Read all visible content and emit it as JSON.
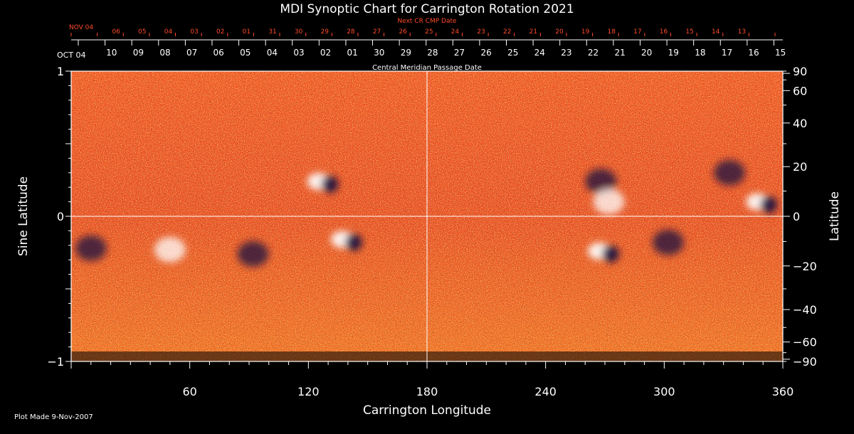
{
  "chart_data": {
    "type": "heatmap",
    "title": "MDI Synoptic Chart for Carrington Rotation 2021",
    "xlabel": "Carrington Longitude",
    "ylabel": "Sine Latitude",
    "y2label": "Latitude",
    "xlim": [
      0,
      360
    ],
    "ylim": [
      -1,
      1
    ],
    "x_ticks": [
      60,
      120,
      180,
      240,
      300,
      360
    ],
    "y_ticks": [
      {
        "value": -1,
        "label": "−1"
      },
      {
        "value": 0,
        "label": "0"
      },
      {
        "value": 1,
        "label": "1"
      }
    ],
    "lat_ticks": [
      {
        "deg": 90,
        "label": "90"
      },
      {
        "deg": 60,
        "label": "60"
      },
      {
        "deg": 40,
        "label": "40"
      },
      {
        "deg": 20,
        "label": "20"
      },
      {
        "deg": 0,
        "label": "0"
      },
      {
        "deg": -20,
        "label": "−20"
      },
      {
        "deg": -40,
        "label": "−40"
      },
      {
        "deg": -60,
        "label": "−60"
      },
      {
        "deg": -90,
        "label": "−90"
      }
    ],
    "top_axis_label": "Central Meridian Passage Date",
    "cmp_start": "OCT 04",
    "cmp_dates": [
      "10",
      "09",
      "08",
      "07",
      "06",
      "05",
      "04",
      "03",
      "02",
      "01",
      "30",
      "29",
      "28",
      "27",
      "26",
      "25",
      "24",
      "23",
      "22",
      "21",
      "20",
      "19",
      "18",
      "17",
      "16",
      "15"
    ],
    "next_cr_label": "Next CR CMP Date",
    "next_cr_start": "NOV 04",
    "next_cr_dates": [
      "06",
      "05",
      "04",
      "03",
      "02",
      "01",
      "31",
      "30",
      "29",
      "28",
      "27",
      "26",
      "25",
      "24",
      "23",
      "22",
      "21",
      "20",
      "19",
      "18",
      "17",
      "16",
      "15",
      "14",
      "13"
    ],
    "active_regions": [
      {
        "lon": 128,
        "sinlat": 0.24,
        "polarity": "mixed"
      },
      {
        "lon": 140,
        "sinlat": -0.16,
        "polarity": "mixed"
      },
      {
        "lon": 92,
        "sinlat": -0.26,
        "polarity": "negative"
      },
      {
        "lon": 10,
        "sinlat": -0.22,
        "polarity": "negative"
      },
      {
        "lon": 50,
        "sinlat": -0.23,
        "polarity": "positive"
      },
      {
        "lon": 268,
        "sinlat": 0.24,
        "polarity": "negative"
      },
      {
        "lon": 272,
        "sinlat": 0.1,
        "polarity": "positive"
      },
      {
        "lon": 270,
        "sinlat": -0.24,
        "polarity": "mixed"
      },
      {
        "lon": 302,
        "sinlat": -0.18,
        "polarity": "negative"
      },
      {
        "lon": 333,
        "sinlat": 0.3,
        "polarity": "negative"
      },
      {
        "lon": 350,
        "sinlat": 0.1,
        "polarity": "mixed"
      }
    ],
    "colors": {
      "background": "#000000",
      "field_base": "#e8461e",
      "positive": "#ffffff",
      "negative": "#1a1040"
    }
  },
  "footer": {
    "plot_made": "Plot Made  9-Nov-2007"
  }
}
